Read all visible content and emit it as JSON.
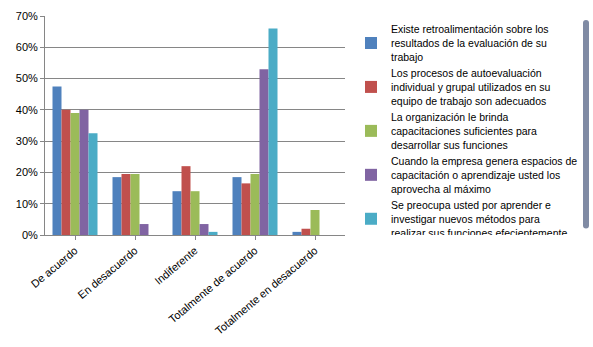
{
  "chart_data": {
    "type": "bar",
    "categories": [
      "De acuerdo",
      "En desacuerdo",
      "Indiferente",
      "Totalmente de acuerdo",
      "Totalmente en desacuerdo"
    ],
    "series": [
      {
        "name": "Existe retroalimentación sobre los resultados de la evaluación de su trabajo",
        "color": "#4F81BD",
        "values": [
          47.5,
          18.5,
          14,
          18.5,
          1
        ]
      },
      {
        "name": "Los procesos de autoevaluación individual y grupal utilizados en su equipo de trabajo son adecuados",
        "color": "#C0504D",
        "values": [
          40,
          19.5,
          22,
          16.5,
          2
        ]
      },
      {
        "name": "La organización le brinda capacitaciones suficientes para desarrollar sus funciones",
        "color": "#9BBB59",
        "values": [
          39,
          19.5,
          14,
          19.5,
          8
        ]
      },
      {
        "name": "Cuando la empresa genera espacios de capacitación o aprendizaje usted los aprovecha al máximo",
        "color": "#8064A2",
        "values": [
          40,
          3.5,
          3.5,
          53,
          0
        ]
      },
      {
        "name": "Se preocupa usted por aprender e investigar nuevos métodos para realizar sus funciones efecientemente",
        "color": "#4BACC6",
        "values": [
          32.5,
          0,
          1,
          66,
          0
        ]
      }
    ],
    "ylim": [
      0,
      70
    ],
    "yticks": [
      {
        "value": 0,
        "label": "0%"
      },
      {
        "value": 10,
        "label": "10%"
      },
      {
        "value": 20,
        "label": "20%"
      },
      {
        "value": 30,
        "label": "30%"
      },
      {
        "value": 40,
        "label": "40%"
      },
      {
        "value": 50,
        "label": "50%"
      },
      {
        "value": 60,
        "label": "60%"
      },
      {
        "value": 70,
        "label": "70%"
      }
    ],
    "grid": true,
    "legend": "right"
  }
}
